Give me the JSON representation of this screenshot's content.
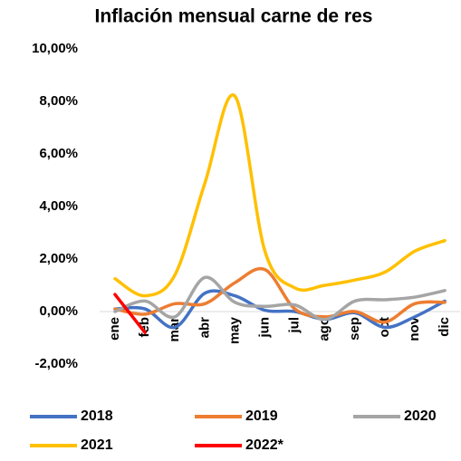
{
  "chart_data": {
    "type": "line",
    "title": "Inflación mensual carne de res",
    "categories": [
      "ene",
      "feb",
      "mar",
      "abr",
      "may",
      "jun",
      "jul",
      "ago",
      "sep",
      "oct",
      "nov",
      "dic"
    ],
    "series": [
      {
        "name": "2018",
        "color": "#4472c4",
        "values": [
          0.1,
          0.1,
          -0.6,
          0.7,
          0.6,
          0.05,
          0.0,
          -0.3,
          -0.05,
          -0.6,
          -0.2,
          0.4
        ]
      },
      {
        "name": "2019",
        "color": "#ed7d31",
        "values": [
          0.1,
          -0.1,
          0.3,
          0.3,
          1.1,
          1.6,
          0.1,
          -0.2,
          0.0,
          -0.4,
          0.3,
          0.35
        ]
      },
      {
        "name": "2020",
        "color": "#a5a5a5",
        "values": [
          0.0,
          0.4,
          -0.2,
          1.3,
          0.35,
          0.2,
          0.25,
          -0.3,
          0.4,
          0.45,
          0.55,
          0.8
        ]
      },
      {
        "name": "2021",
        "color": "#ffc000",
        "values": [
          1.25,
          0.6,
          1.4,
          4.9,
          8.2,
          2.3,
          0.9,
          1.0,
          1.2,
          1.5,
          2.3,
          2.7
        ]
      },
      {
        "name": "2022*",
        "color": "#ff0000",
        "values": [
          0.65,
          -0.8,
          null,
          null,
          null,
          null,
          null,
          null,
          null,
          null,
          null,
          null
        ]
      }
    ],
    "ylim": [
      -2,
      10
    ],
    "yticks": [
      {
        "value": -2,
        "label": "-2,00%"
      },
      {
        "value": 0,
        "label": "0,00%"
      },
      {
        "value": 2,
        "label": "2,00%"
      },
      {
        "value": 4,
        "label": "4,00%"
      },
      {
        "value": 6,
        "label": "6,00%"
      },
      {
        "value": 8,
        "label": "8,00%"
      },
      {
        "value": 10,
        "label": "10,00%"
      }
    ],
    "grid": false
  }
}
